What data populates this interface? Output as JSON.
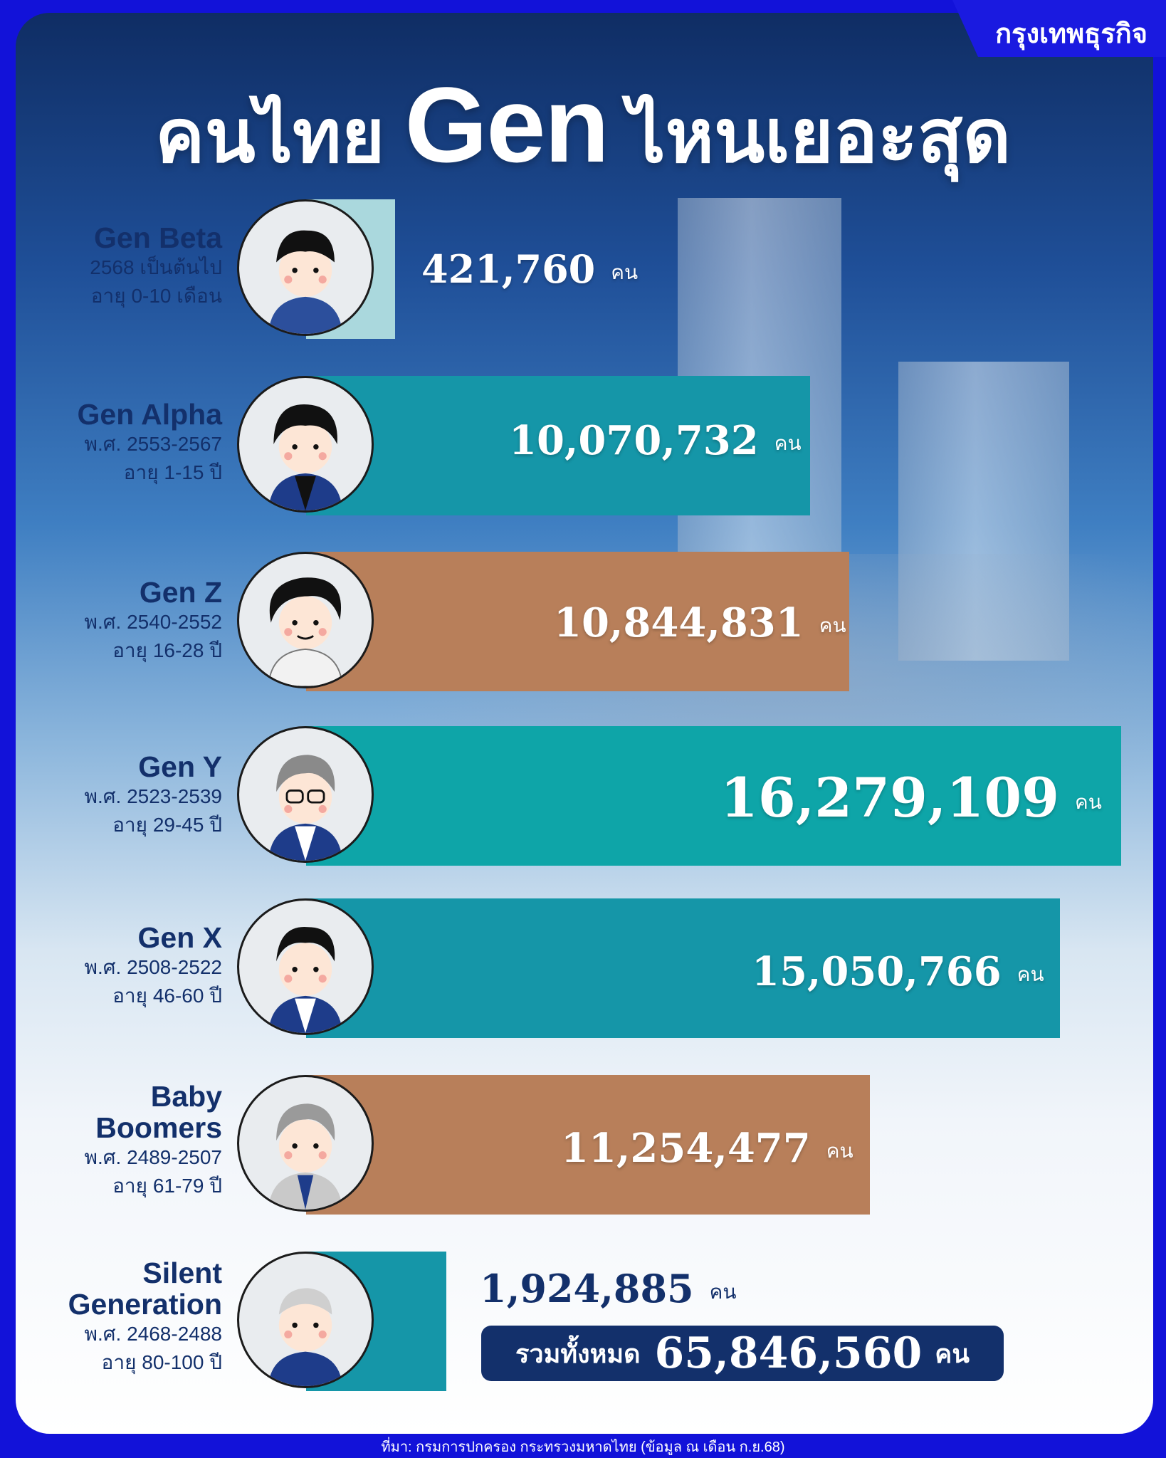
{
  "brand": "กรุงเทพธุรกิจ",
  "title": {
    "part1": "คนไทย",
    "part2": "Gen",
    "part3": "ไหนเยอะสุด"
  },
  "unit": "คน",
  "colors": {
    "teal": "#1596a8",
    "teal_bright": "#0ea5a8",
    "brown": "#b87f5a",
    "navy": "#13306b",
    "beta_box": "#aad8dd"
  },
  "generations": [
    {
      "name": "Gen Beta",
      "sub1": "2568 เป็นต้นไป",
      "sub2": "อายุ 0-10 เดือน",
      "value_text": "421,760",
      "avatar_icon": "gen-beta-avatar-icon"
    },
    {
      "name": "Gen Alpha",
      "sub1": "พ.ศ. 2553-2567",
      "sub2": "อายุ 1-15 ปี",
      "value_text": "10,070,732",
      "avatar_icon": "gen-alpha-avatar-icon"
    },
    {
      "name": "Gen Z",
      "sub1": "พ.ศ. 2540-2552",
      "sub2": "อายุ 16-28 ปี",
      "value_text": "10,844,831",
      "avatar_icon": "gen-z-avatar-icon"
    },
    {
      "name": "Gen Y",
      "sub1": "พ.ศ. 2523-2539",
      "sub2": "อายุ 29-45 ปี",
      "value_text": "16,279,109",
      "avatar_icon": "gen-y-avatar-icon"
    },
    {
      "name": "Gen X",
      "sub1": "พ.ศ. 2508-2522",
      "sub2": "อายุ 46-60 ปี",
      "value_text": "15,050,766",
      "avatar_icon": "gen-x-avatar-icon"
    },
    {
      "name_line1": "Baby",
      "name_line2": "Boomers",
      "sub1": "พ.ศ. 2489-2507",
      "sub2": "อายุ 61-79 ปี",
      "value_text": "11,254,477",
      "avatar_icon": "baby-boomer-avatar-icon"
    },
    {
      "name_line1": "Silent",
      "name_line2": "Generation",
      "sub1": "พ.ศ. 2468-2488",
      "sub2": "อายุ 80-100 ปี",
      "value_text": "1,924,885",
      "avatar_icon": "silent-generation-avatar-icon"
    }
  ],
  "total": {
    "label": "รวมทั้งหมด",
    "value": "65,846,560",
    "unit": "คน"
  },
  "source": "ที่มา: กรมการปกครอง กระทรวงมหาดไทย (ข้อมูล ณ เดือน ก.ย.68)",
  "chart_data": {
    "type": "bar",
    "orientation": "horizontal",
    "categories": [
      "Gen Beta",
      "Gen Alpha",
      "Gen Z",
      "Gen Y",
      "Gen X",
      "Baby Boomers",
      "Silent Generation"
    ],
    "values": [
      421760,
      10070732,
      10844831,
      16279109,
      15050766,
      11254477,
      1924885
    ],
    "bar_colors": [
      "#aad8dd",
      "#1596a8",
      "#b87f5a",
      "#0ea5a8",
      "#1596a8",
      "#b87f5a",
      "#1596a8"
    ],
    "title": "คนไทย Gen ไหนเยอะสุด",
    "xlabel": "",
    "ylabel": "",
    "total": 65846560
  }
}
